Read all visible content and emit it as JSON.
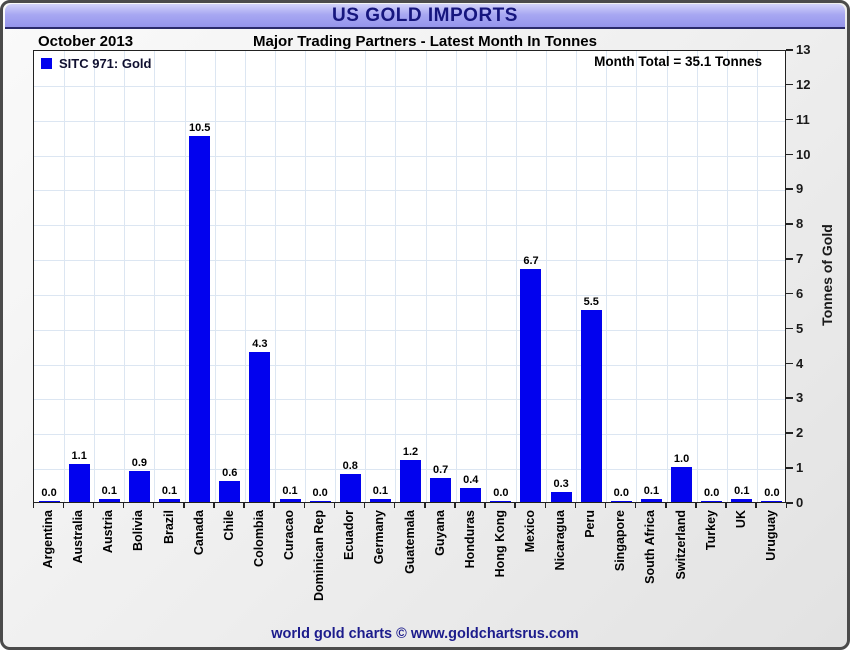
{
  "header": {
    "title": "US GOLD IMPORTS"
  },
  "subheader": {
    "period": "October 2013",
    "subtitle": "Major Trading Partners - Latest Month In Tonnes"
  },
  "legend": {
    "label": "SITC 971: Gold"
  },
  "annotation": {
    "month_total": "Month Total = 35.1 Tonnes"
  },
  "footer": {
    "credit": "world gold charts © www.goldchartsrus.com"
  },
  "colors": {
    "bar": "#0202ee",
    "title_navy": "#16167e",
    "footer_navy": "#1c1c8c",
    "gridline": "#dce6f2",
    "title_bar_top": "#d3d3fa",
    "title_bar_bottom": "#9595ec"
  },
  "chart_data": {
    "type": "bar",
    "title": "US GOLD IMPORTS",
    "subtitle": "Major Trading Partners - Latest Month In Tonnes",
    "period": "October 2013",
    "ylabel": "Tonnes of Gold",
    "ylim": [
      0,
      13
    ],
    "yticks": [
      0,
      1,
      2,
      3,
      4,
      5,
      6,
      7,
      8,
      9,
      10,
      11,
      12,
      13
    ],
    "grid": true,
    "legend_position": "top-left",
    "legend": [
      "SITC 971: Gold"
    ],
    "annotations": [
      "Month Total = 35.1 Tonnes"
    ],
    "categories": [
      "Argentina",
      "Australia",
      "Austria",
      "Bolivia",
      "Brazil",
      "Canada",
      "Chile",
      "Colombia",
      "Curacao",
      "Dominican Rep",
      "Ecuador",
      "Germany",
      "Guatemala",
      "Guyana",
      "Honduras",
      "Hong Kong",
      "Mexico",
      "Nicaragua",
      "Peru",
      "Singapore",
      "South Africa",
      "Switzerland",
      "Turkey",
      "UK",
      "Uruguay"
    ],
    "values": [
      0.0,
      1.1,
      0.1,
      0.9,
      0.1,
      10.5,
      0.6,
      4.3,
      0.1,
      0.0,
      0.8,
      0.1,
      1.2,
      0.7,
      0.4,
      0.0,
      6.7,
      0.3,
      5.5,
      0.0,
      0.1,
      1.0,
      0.0,
      0.1,
      0.0
    ]
  }
}
